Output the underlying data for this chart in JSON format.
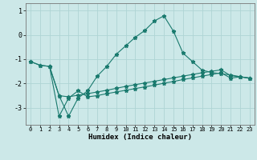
{
  "xlabel": "Humidex (Indice chaleur)",
  "bg_color": "#cce8e8",
  "grid_color": "#afd4d4",
  "line_color": "#1a7a6e",
  "x_ticks": [
    0,
    1,
    2,
    3,
    4,
    5,
    6,
    7,
    8,
    9,
    10,
    11,
    12,
    13,
    14,
    15,
    16,
    17,
    18,
    19,
    20,
    21,
    22,
    23
  ],
  "ylim": [
    -3.7,
    1.3
  ],
  "xlim": [
    -0.5,
    23.5
  ],
  "yticks": [
    -3,
    -2,
    -1,
    0,
    1
  ],
  "line1_x": [
    0,
    1,
    2,
    3,
    4,
    5,
    6,
    7,
    8,
    9,
    10,
    11,
    12,
    13,
    14,
    15,
    16,
    17,
    18,
    19,
    20,
    21,
    22,
    23
  ],
  "line1_y": [
    -1.1,
    -1.25,
    -1.3,
    -2.5,
    -3.35,
    -2.6,
    -2.3,
    -1.7,
    -1.3,
    -0.8,
    -0.45,
    -0.1,
    0.18,
    0.57,
    0.78,
    0.15,
    -0.75,
    -1.1,
    -1.45,
    -1.55,
    -1.6,
    -1.65,
    -1.72,
    -1.78
  ],
  "line2_x": [
    0,
    1,
    2,
    3,
    4,
    5,
    6,
    7,
    8,
    9,
    10,
    11,
    12,
    13,
    14,
    15,
    16,
    17,
    18,
    19,
    20,
    21,
    22,
    23
  ],
  "line2_y": [
    -1.1,
    -1.25,
    -1.3,
    -2.5,
    -2.55,
    -2.48,
    -2.42,
    -2.35,
    -2.28,
    -2.2,
    -2.12,
    -2.05,
    -1.98,
    -1.91,
    -1.84,
    -1.77,
    -1.7,
    -1.63,
    -1.56,
    -1.5,
    -1.44,
    -1.68,
    -1.73,
    -1.78
  ],
  "line3_x": [
    2,
    3,
    4,
    5,
    6,
    7,
    8,
    9,
    10,
    11,
    12,
    13,
    14,
    15,
    16,
    17,
    18,
    19,
    20,
    21,
    22,
    23
  ],
  "line3_y": [
    -1.3,
    -3.35,
    -2.6,
    -2.3,
    -2.55,
    -2.5,
    -2.42,
    -2.35,
    -2.28,
    -2.21,
    -2.14,
    -2.07,
    -1.99,
    -1.92,
    -1.84,
    -1.77,
    -1.7,
    -1.63,
    -1.56,
    -1.78,
    -1.73,
    -1.78
  ]
}
